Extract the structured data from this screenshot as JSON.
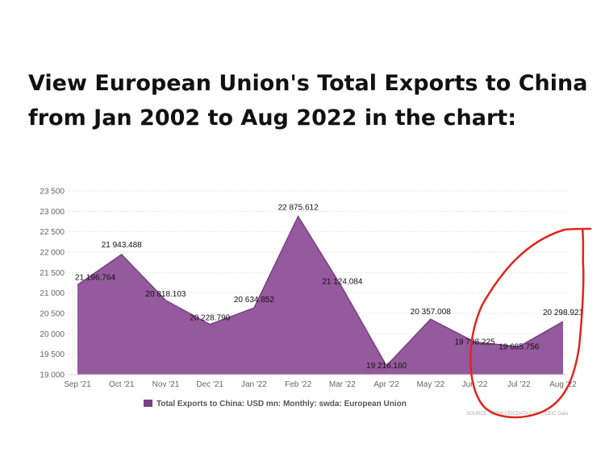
{
  "heading": {
    "line1": "View European Union's Total Exports to China",
    "line2": "from Jan 2002 to Aug 2022 in the chart:"
  },
  "chart_data": {
    "type": "area",
    "title": "",
    "xlabel": "",
    "ylabel": "",
    "categories": [
      "Sep '21",
      "Oct '21",
      "Nov '21",
      "Dec '21",
      "Jan '22",
      "Feb '22",
      "Mar '22",
      "Apr '22",
      "May '22",
      "Jun '22",
      "Jul '22",
      "Aug '22"
    ],
    "series": [
      {
        "name": "Total Exports to China: USD mn: Monthly: swda: European Union",
        "values": [
          21196.764,
          21943.488,
          20818.103,
          20228.79,
          20634.852,
          22875.612,
          21124.084,
          19216.16,
          20357.008,
          19798.225,
          19685.756,
          20298.921
        ],
        "labels": [
          "21 196.764",
          "21 943.488",
          "20 818.103",
          "20 228.790",
          "20 634.852",
          "22 875.612",
          "21 124.084",
          "19 216.160",
          "20 357.008",
          "19 798.225",
          "19 685.756",
          "20 298.921"
        ]
      }
    ],
    "ylim": [
      19000,
      23500
    ],
    "yticks": [
      19000,
      19500,
      20000,
      20500,
      21000,
      21500,
      22000,
      22500,
      23000,
      23500
    ],
    "ytick_labels": [
      "19 000",
      "19 500",
      "20 000",
      "20 500",
      "21 000",
      "21 500",
      "22 000",
      "22 500",
      "23 000",
      "23 500"
    ],
    "grid": true,
    "legend": "bottom-left",
    "source": "SOURCE: WWW.CEICDATA.COM | CEIC Data",
    "colors": {
      "area": "#95599d",
      "line": "#7b3f85",
      "legend_marker": "#7b3f85",
      "annotation": "#e0261c"
    }
  }
}
